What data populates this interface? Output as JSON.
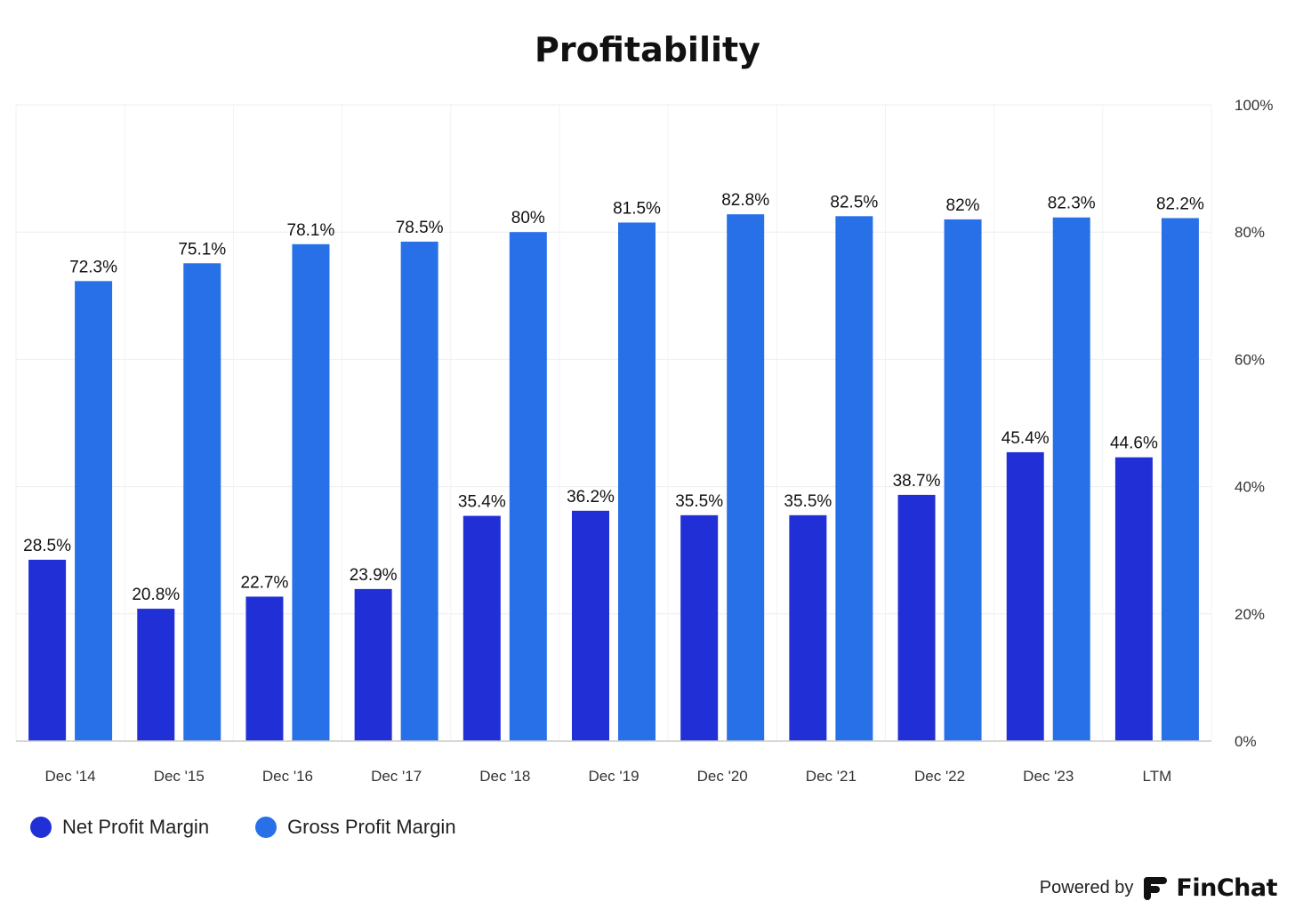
{
  "chart_data": {
    "type": "bar",
    "title": "Profitability",
    "categories": [
      "Dec '14",
      "Dec '15",
      "Dec '16",
      "Dec '17",
      "Dec '18",
      "Dec '19",
      "Dec '20",
      "Dec '21",
      "Dec '22",
      "Dec '23",
      "LTM"
    ],
    "series": [
      {
        "name": "Net Profit Margin",
        "color": "#2130d6",
        "values": [
          28.5,
          20.8,
          22.7,
          23.9,
          35.4,
          36.2,
          35.5,
          35.5,
          38.7,
          45.4,
          44.6
        ],
        "labels": [
          "28.5%",
          "20.8%",
          "22.7%",
          "23.9%",
          "35.4%",
          "36.2%",
          "35.5%",
          "35.5%",
          "38.7%",
          "45.4%",
          "44.6%"
        ]
      },
      {
        "name": "Gross Profit Margin",
        "color": "#2770e8",
        "values": [
          72.3,
          75.1,
          78.1,
          78.5,
          80,
          81.5,
          82.8,
          82.5,
          82,
          82.3,
          82.2
        ],
        "labels": [
          "72.3%",
          "75.1%",
          "78.1%",
          "78.5%",
          "80%",
          "81.5%",
          "82.8%",
          "82.5%",
          "82%",
          "82.3%",
          "82.2%"
        ]
      }
    ],
    "ylim": [
      0,
      100
    ],
    "yticks": [
      0,
      20,
      40,
      60,
      80,
      100
    ],
    "ytick_labels": [
      "0%",
      "20%",
      "40%",
      "60%",
      "80%",
      "100%"
    ],
    "y_axis_side": "right",
    "grid": true,
    "legend_position": "bottom-left"
  },
  "branding": {
    "powered_by": "Powered by",
    "brand_name": "FinChat",
    "brand_icon": "finchat-logo-icon"
  }
}
